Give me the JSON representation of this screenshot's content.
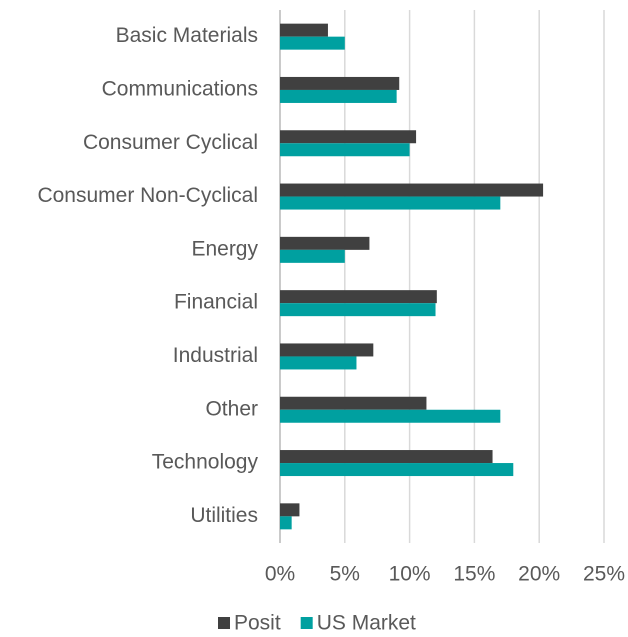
{
  "chart_data": {
    "type": "hbar",
    "categories": [
      "Basic Materials",
      "Communications",
      "Consumer Cyclical",
      "Consumer Non-Cyclical",
      "Energy",
      "Financial",
      "Industrial",
      "Other",
      "Technology",
      "Utilities"
    ],
    "series": [
      {
        "name": "Posit",
        "color": "#404040",
        "values": [
          3.7,
          9.2,
          10.5,
          20.3,
          6.9,
          12.1,
          7.2,
          11.3,
          16.4,
          1.5
        ]
      },
      {
        "name": "US Market",
        "color": "#00a0a0",
        "values": [
          5.0,
          9.0,
          10.0,
          17.0,
          5.0,
          12.0,
          5.9,
          17.0,
          18.0,
          0.9
        ]
      }
    ],
    "xlim": [
      0,
      25
    ],
    "xticks": [
      {
        "value": 0,
        "label": "0%"
      },
      {
        "value": 5,
        "label": "5%"
      },
      {
        "value": 10,
        "label": "10%"
      },
      {
        "value": 15,
        "label": "15%"
      },
      {
        "value": 20,
        "label": "20%"
      },
      {
        "value": 25,
        "label": "25%"
      }
    ],
    "grid": true,
    "legend": "bottom"
  }
}
